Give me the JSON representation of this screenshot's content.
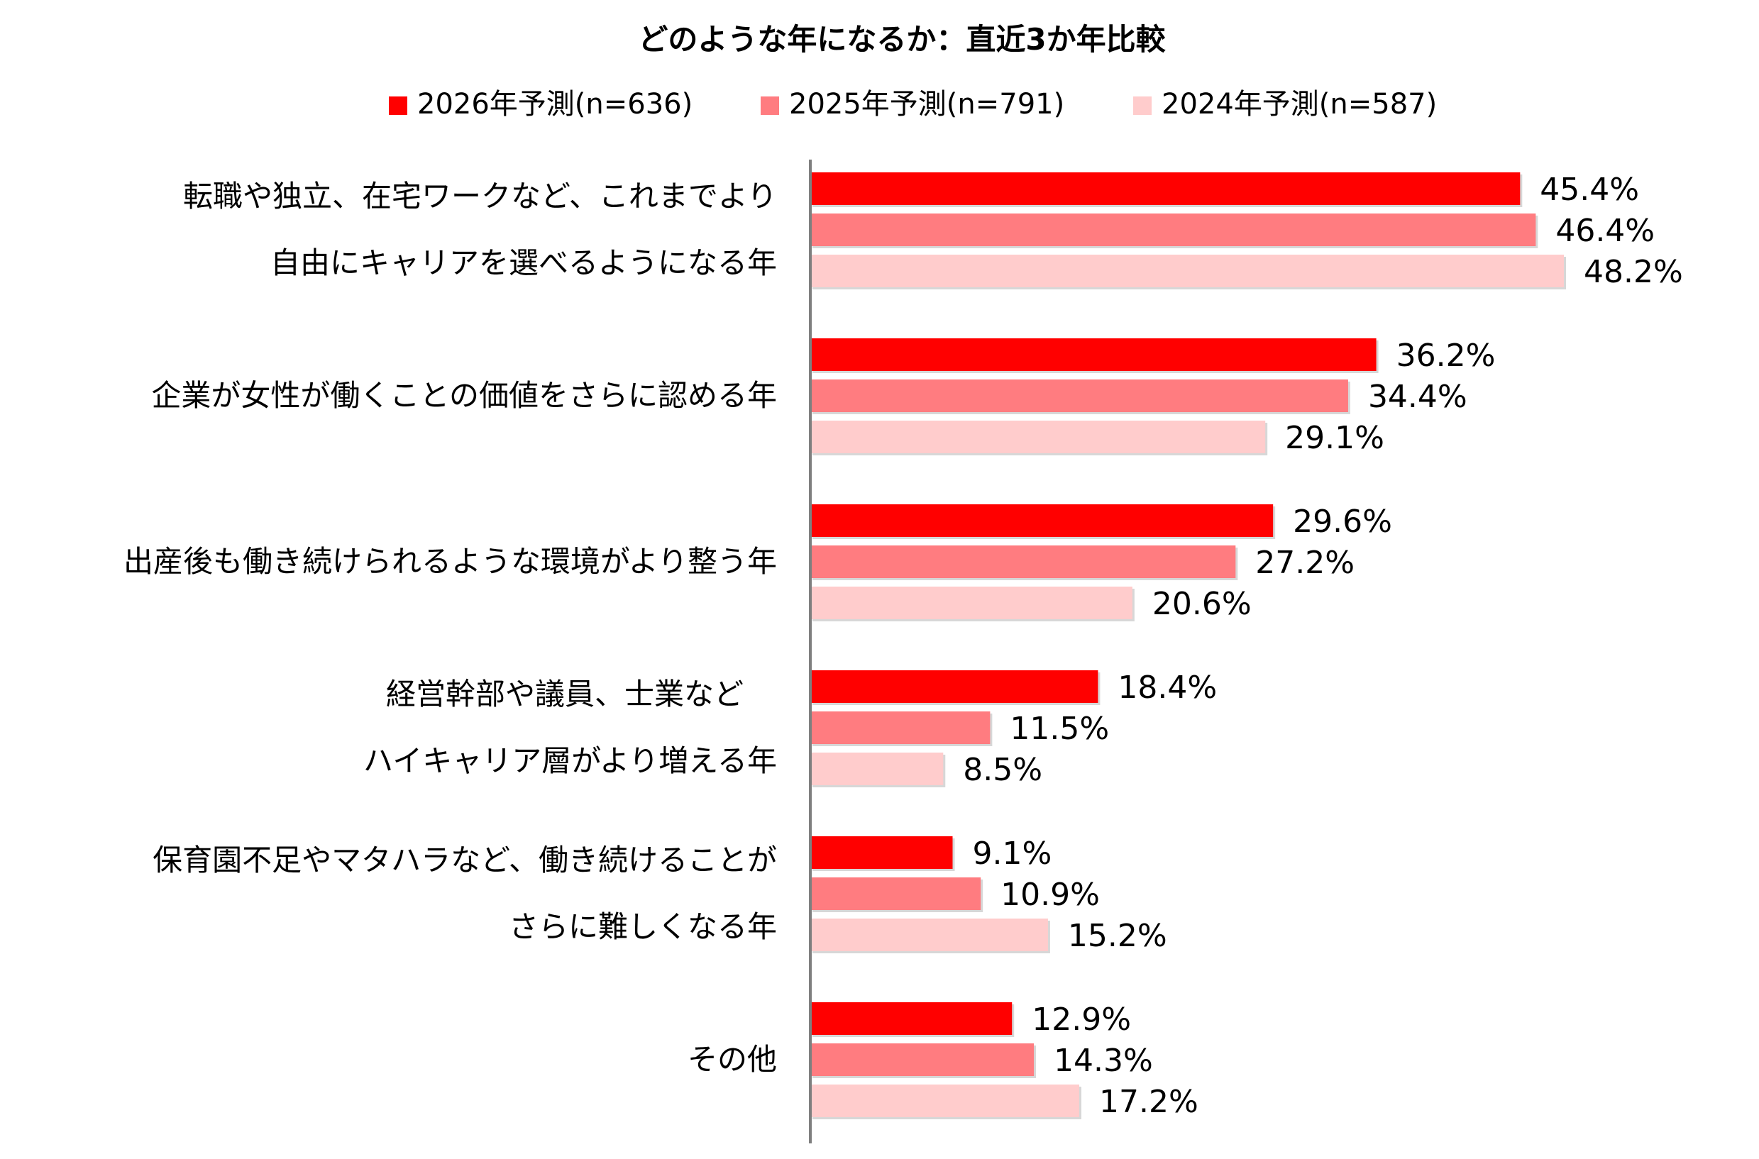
{
  "chart_data": {
    "type": "bar",
    "orientation": "horizontal",
    "title": "どのような年になるか：直近3か年比較",
    "legend_position": "top",
    "grid": false,
    "xlim": [
      0,
      50
    ],
    "categories": [
      [
        "転職や独立、在宅ワークなど、これまでより",
        "自由にキャリアを選べるようになる年"
      ],
      [
        "企業が女性が働くことの価値をさらに認める年"
      ],
      [
        "出産後も働き続けられるような環境がより整う年"
      ],
      [
        "経営幹部や議員、士業など",
        "ハイキャリア層がより増える年"
      ],
      [
        "保育園不足やマタハラなど、働き続けることが",
        "さらに難しくなる年"
      ],
      [
        "その他"
      ]
    ],
    "series": [
      {
        "name": "2026年予測(n=636)",
        "color": "#ff0000",
        "values": [
          45.4,
          36.2,
          29.6,
          18.4,
          9.1,
          12.9
        ]
      },
      {
        "name": "2025年予測(n=791)",
        "color": "#ff7c80",
        "values": [
          46.4,
          34.4,
          27.2,
          11.5,
          10.9,
          14.3
        ]
      },
      {
        "name": "2024年予測(n=587)",
        "color": "#ffcccc",
        "values": [
          48.2,
          29.1,
          20.6,
          8.5,
          15.2,
          17.2
        ]
      }
    ],
    "value_format": "%"
  }
}
